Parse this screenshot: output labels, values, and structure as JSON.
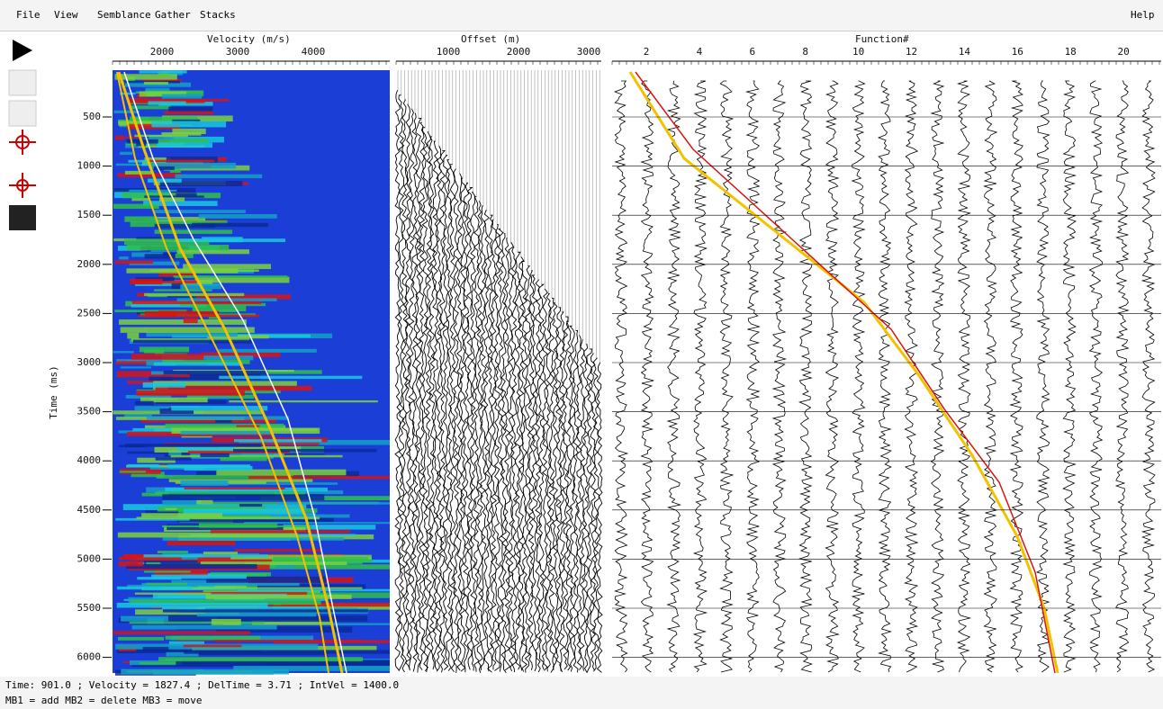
{
  "menu": {
    "items": [
      "File",
      "View",
      "Semblance",
      "Gather",
      "Stacks"
    ],
    "help": "Help"
  },
  "panels": {
    "velocity": {
      "title": "Velocity (m/s)",
      "ticks": [
        2000,
        3000,
        4000
      ]
    },
    "offset": {
      "title": "Offset (m)",
      "ticks": [
        1000,
        2000,
        3000
      ]
    },
    "function": {
      "title": "Function#",
      "ticks": [
        2,
        4,
        6,
        8,
        10,
        12,
        14,
        16,
        18,
        20
      ]
    },
    "time": {
      "title": "Time (ms)",
      "ticks": [
        500,
        1000,
        1500,
        2000,
        2500,
        3000,
        3500,
        4000,
        4500,
        5000,
        5500,
        6000
      ]
    }
  },
  "status": {
    "readout": "Time: 901.0 ; Velocity = 1827.4 ; DelTime = 3.71 ; IntVel = 1400.0",
    "mouse": "MB1 = add  MB2 = delete  MB3 = move"
  }
}
